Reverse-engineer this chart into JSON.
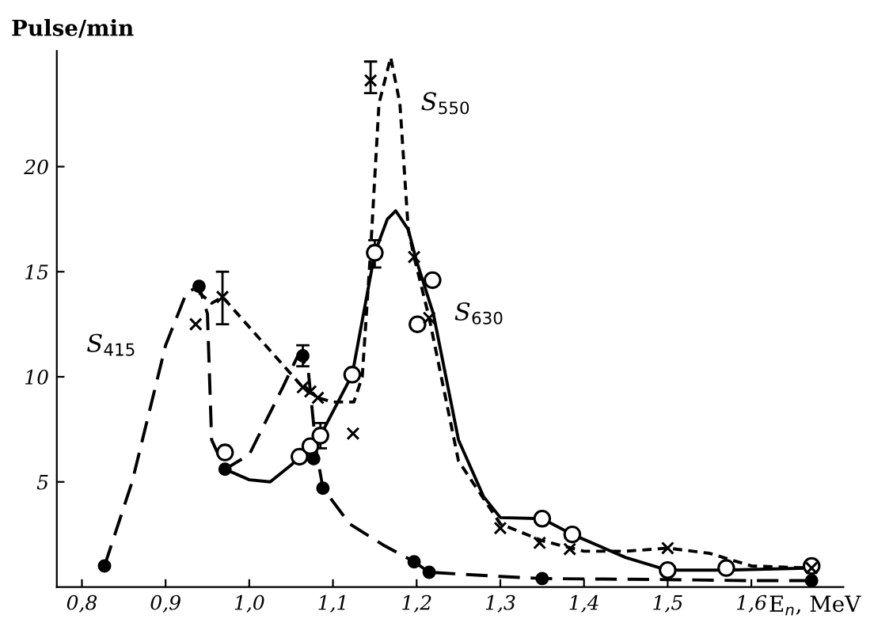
{
  "chart_data": {
    "type": "line",
    "xlabel": "E$_{n}$, MeV",
    "ylabel": "Pulse/min",
    "xlim": [
      0.77,
      1.71
    ],
    "ylim": [
      0,
      25.5
    ],
    "xticks": [
      {
        "value": 0.8,
        "label": "0,8"
      },
      {
        "value": 0.9,
        "label": "0,9"
      },
      {
        "value": 1.0,
        "label": "1,0"
      },
      {
        "value": 1.1,
        "label": "1,1"
      },
      {
        "value": 1.2,
        "label": "1,2"
      },
      {
        "value": 1.3,
        "label": "1,3"
      },
      {
        "value": 1.4,
        "label": "1,4"
      },
      {
        "value": 1.5,
        "label": "1,5"
      },
      {
        "value": 1.6,
        "label": "1,6"
      }
    ],
    "yticks": [
      5,
      10,
      15,
      20
    ],
    "grid": false,
    "legend": false,
    "series": [
      {
        "name": "S$_{415}$",
        "color": "#000000",
        "line_style": "long_dashed",
        "marker": "none",
        "x": [
          0.827,
          0.86,
          0.9,
          0.925,
          0.94,
          0.95,
          0.955,
          0.971,
          1.0,
          1.04,
          1.058,
          1.07,
          1.08,
          1.088,
          1.12,
          1.16,
          1.197,
          1.215,
          1.3,
          1.35,
          1.5,
          1.6,
          1.672
        ],
        "values": [
          1.0,
          5,
          11.5,
          14,
          14.3,
          13,
          7,
          5.6,
          6.3,
          9.5,
          11,
          10.5,
          6.5,
          4.7,
          3,
          2,
          1.2,
          0.7,
          0.5,
          0.4,
          0.35,
          0.3,
          0.3
        ]
      },
      {
        "type": "scatter",
        "color": "#000000",
        "marker": "filled_circle",
        "x": [
          0.827,
          0.94,
          0.971,
          1.064,
          1.077,
          1.088,
          1.197,
          1.215,
          1.35,
          1.672
        ],
        "values": [
          1.0,
          14.3,
          5.6,
          11.0,
          6.1,
          4.7,
          1.2,
          0.7,
          0.4,
          0.3
        ],
        "errors": [
          null,
          null,
          null,
          [
            10.5,
            11.5
          ],
          null,
          null,
          null,
          null,
          null,
          null
        ]
      },
      {
        "name": "S$_{550}$",
        "color": "#000000",
        "line_style": "dashed",
        "marker": "none",
        "x": [
          0.94,
          0.955,
          0.968,
          1.064,
          1.082,
          1.1,
          1.125,
          1.135,
          1.145,
          1.155,
          1.169,
          1.18,
          1.19,
          1.197,
          1.215,
          1.25,
          1.3,
          1.35,
          1.4,
          1.45,
          1.5,
          1.55,
          1.6,
          1.672
        ],
        "values": [
          14,
          13.5,
          13.8,
          9.5,
          9.0,
          8.8,
          8.8,
          10,
          16,
          23,
          25.2,
          23,
          17,
          15.7,
          12.8,
          6,
          3,
          2.2,
          1.7,
          1.7,
          1.85,
          1.6,
          1.0,
          0.9
        ]
      },
      {
        "type": "scatter",
        "color": "#000000",
        "marker": "cross",
        "x": [
          0.936,
          0.968,
          1.064,
          1.073,
          1.082,
          1.124,
          1.145,
          1.197,
          1.215,
          1.3,
          1.347,
          1.383,
          1.5,
          1.672
        ],
        "values": [
          12.5,
          13.8,
          9.5,
          9.3,
          9.0,
          7.3,
          24.1,
          15.7,
          12.8,
          2.8,
          2.1,
          1.8,
          1.85,
          0.9
        ],
        "errors": [
          null,
          [
            12.5,
            15.0
          ],
          null,
          null,
          null,
          null,
          [
            23.5,
            25.0
          ],
          null,
          null,
          null,
          null,
          null,
          null,
          null
        ]
      },
      {
        "name": "S$_{630}$",
        "color": "#000000",
        "line_style": "solid",
        "marker": "none",
        "x": [
          0.971,
          1.0,
          1.025,
          1.05,
          1.06,
          1.085,
          1.123,
          1.15,
          1.165,
          1.175,
          1.19,
          1.2,
          1.22,
          1.25,
          1.28,
          1.3,
          1.35,
          1.386,
          1.45,
          1.5,
          1.57,
          1.672
        ],
        "values": [
          5.6,
          5.1,
          5.0,
          5.8,
          6.2,
          7.2,
          10.1,
          15.9,
          17.5,
          17.9,
          17,
          15.5,
          13,
          7,
          4.3,
          3.3,
          3.25,
          2.5,
          1.4,
          0.8,
          0.8,
          0.9
        ]
      },
      {
        "type": "scatter",
        "color": "#000000",
        "marker": "open_circle",
        "x": [
          0.971,
          1.06,
          1.073,
          1.085,
          1.123,
          1.15,
          1.201,
          1.219,
          1.35,
          1.386,
          1.5,
          1.57,
          1.672
        ],
        "values": [
          6.4,
          6.2,
          6.7,
          7.2,
          10.1,
          15.9,
          12.5,
          14.6,
          3.25,
          2.5,
          0.8,
          0.9,
          1.0
        ],
        "errors": [
          null,
          null,
          null,
          [
            6.6,
            7.8
          ],
          null,
          [
            15.2,
            16.5
          ],
          null,
          null,
          null,
          null,
          null,
          null,
          null
        ]
      }
    ]
  }
}
